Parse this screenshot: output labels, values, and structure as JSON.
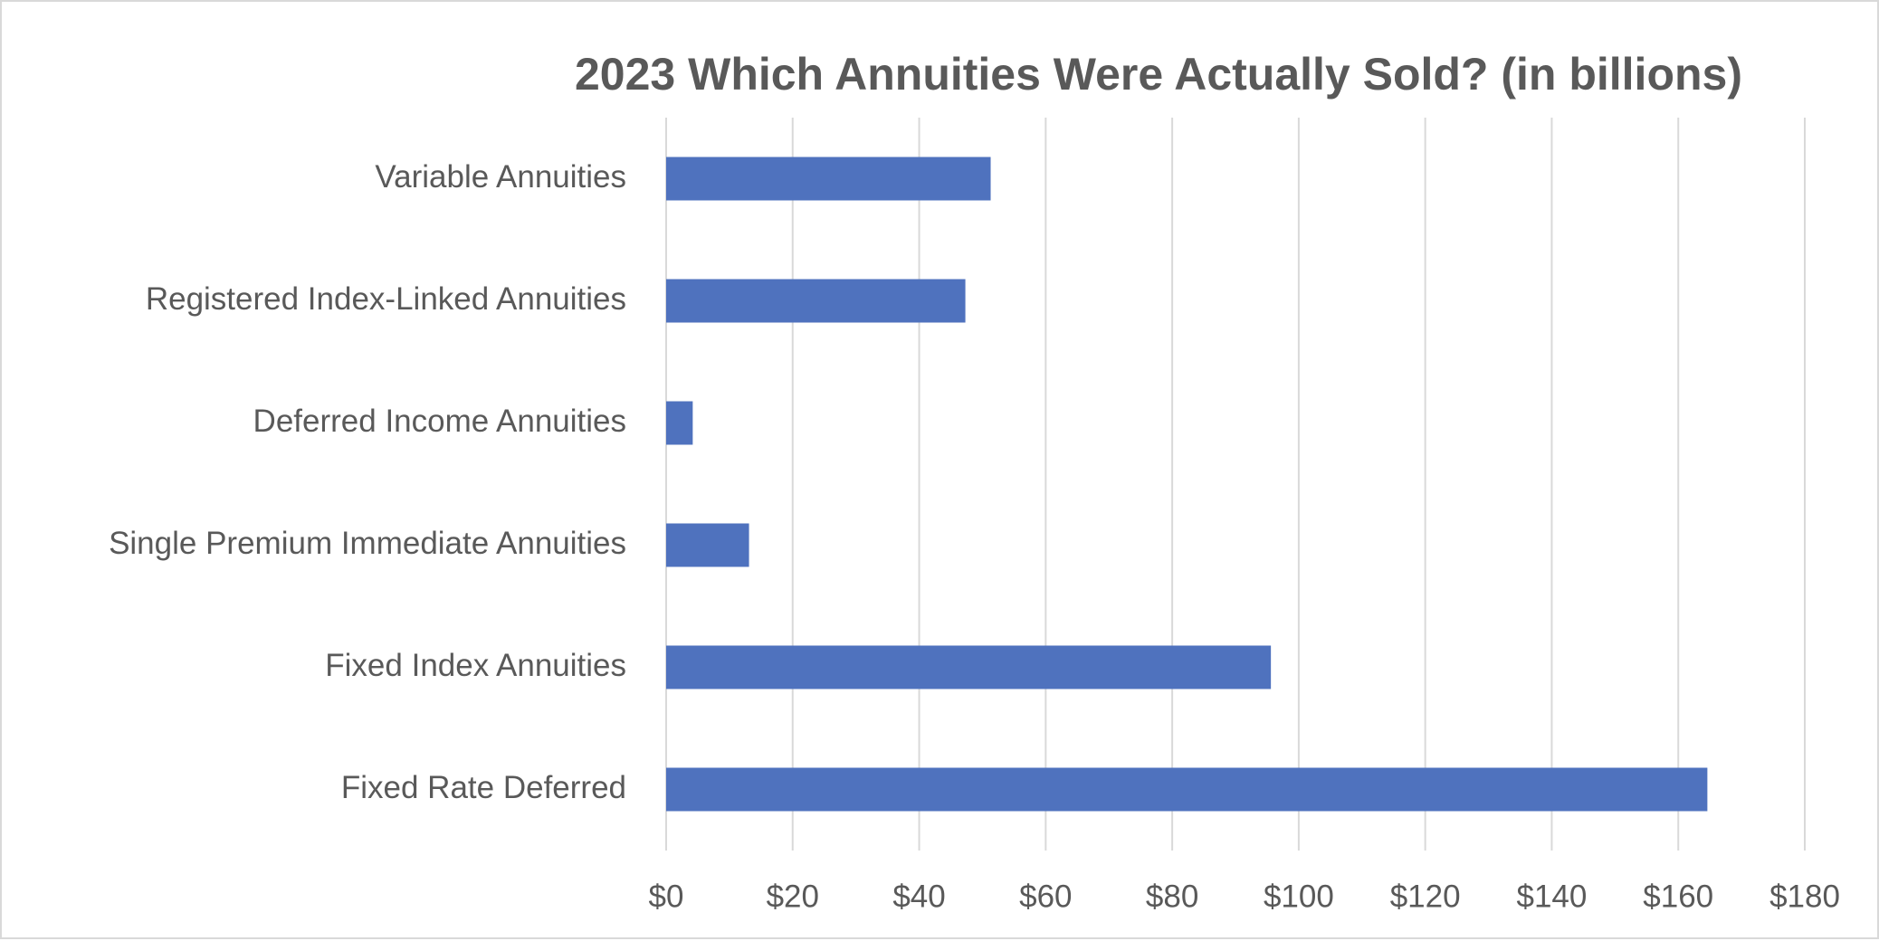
{
  "chart_data": {
    "type": "barh",
    "title": "2023 Which Annuities Were Actually Sold? (in billions)",
    "categories": [
      "Variable Annuities",
      "Registered Index-Linked Annuities",
      "Deferred Income Annuities",
      "Single Premium Immediate Annuities",
      "Fixed Index Annuities",
      "Fixed Rate Deferred"
    ],
    "values": [
      51.3,
      47.3,
      4.2,
      13.1,
      95.6,
      164.6
    ],
    "color": "#4f72be",
    "xlim": [
      0,
      180
    ],
    "xticks": [
      {
        "value": 0,
        "label": "$0"
      },
      {
        "value": 20,
        "label": "$20"
      },
      {
        "value": 40,
        "label": "$40"
      },
      {
        "value": 60,
        "label": "$60"
      },
      {
        "value": 80,
        "label": "$80"
      },
      {
        "value": 100,
        "label": "$100"
      },
      {
        "value": 120,
        "label": "$120"
      },
      {
        "value": 140,
        "label": "$140"
      },
      {
        "value": 160,
        "label": "$160"
      },
      {
        "value": 180,
        "label": "$180"
      }
    ],
    "grid": true
  }
}
